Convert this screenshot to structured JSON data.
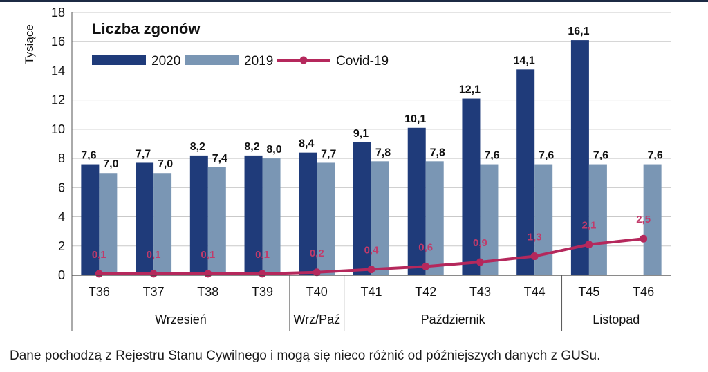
{
  "chart_data": {
    "type": "bar",
    "title": "Liczba zgonów",
    "ylabel": "Tysiące",
    "xlabel": "",
    "ylim": [
      0,
      18
    ],
    "ytick_step": 2,
    "categories": [
      "T36",
      "T37",
      "T38",
      "T39",
      "T40",
      "T41",
      "T42",
      "T43",
      "T44",
      "T45",
      "T46"
    ],
    "series": [
      {
        "name": "2020",
        "type": "bar",
        "color": "#1f3b7a",
        "values": [
          7.6,
          7.7,
          8.2,
          8.2,
          8.4,
          9.1,
          10.1,
          12.1,
          14.1,
          16.1,
          null
        ],
        "labels": [
          "7,6",
          "7,7",
          "8,2",
          "8,2",
          "8,4",
          "9,1",
          "10,1",
          "12,1",
          "14,1",
          "16,1",
          null
        ]
      },
      {
        "name": "2019",
        "type": "bar",
        "color": "#7a96b4",
        "values": [
          7.0,
          7.0,
          7.4,
          8.0,
          7.7,
          7.8,
          7.8,
          7.6,
          7.6,
          7.6,
          7.6
        ],
        "labels": [
          "7,0",
          "7,0",
          "7,4",
          "8,0",
          "7,7",
          "7,8",
          "7,8",
          "7,6",
          "7,6",
          "7,6",
          "7,6"
        ]
      },
      {
        "name": "Covid-19",
        "type": "line",
        "color": "#b5285c",
        "values": [
          0.1,
          0.1,
          0.1,
          0.1,
          0.2,
          0.4,
          0.6,
          0.9,
          1.3,
          2.1,
          2.5
        ],
        "labels": [
          "0,1",
          "0,1",
          "0,1",
          "0,1",
          "0,2",
          "0,4",
          "0,6",
          "0,9",
          "1,3",
          "2,1",
          "2,5"
        ]
      }
    ],
    "month_groups": [
      {
        "label": "Wrzesień",
        "from": 0,
        "to": 3
      },
      {
        "label": "Wrz/Paź",
        "from": 4,
        "to": 4
      },
      {
        "label": "Październik",
        "from": 5,
        "to": 8
      },
      {
        "label": "Listopad",
        "from": 9,
        "to": 10
      }
    ],
    "legend": "top-left",
    "grid": true
  },
  "footnote": "Dane pochodzą z Rejestru Stanu Cywilnego i mogą się nieco różnić od późniejszych danych z GUSu."
}
